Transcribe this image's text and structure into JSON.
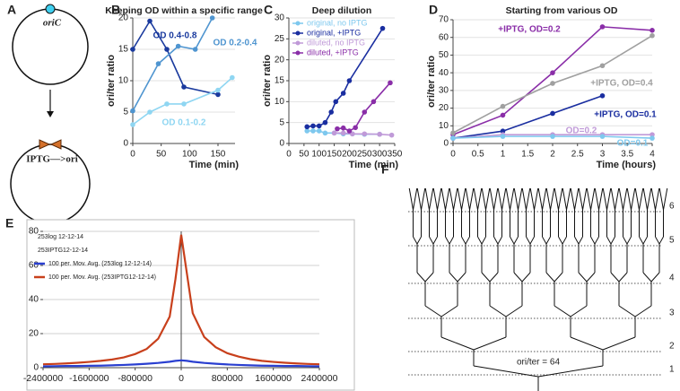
{
  "panel_a": {
    "panel_label": "A",
    "top_label": "oriC",
    "bottom_label": "IPTG—>ori"
  },
  "chart_data": [
    {
      "type": "line",
      "panel_label": "B",
      "title": "Keeping OD within a specific range",
      "x_label": "Time (min)",
      "y_label": "ori/ter ratio",
      "xlim": [
        0,
        180
      ],
      "ylim": [
        0,
        20
      ],
      "xticks": [
        0,
        50,
        100,
        150
      ],
      "yticks": [
        0,
        5,
        10,
        15,
        20
      ],
      "grid": true,
      "markers": true,
      "legend": "inline",
      "series": [
        {
          "name": "OD 0.4-0.8",
          "color": "#1a3a9e",
          "x": [
            0,
            30,
            60,
            90,
            150
          ],
          "values": [
            15,
            19.5,
            15,
            9,
            7.8
          ]
        },
        {
          "name": "OD 0.2-0.4",
          "color": "#4f95d0",
          "x": [
            0,
            45,
            80,
            110,
            140
          ],
          "values": [
            5.2,
            12.7,
            15.5,
            15,
            20
          ]
        },
        {
          "name": "OD 0.1-0.2",
          "color": "#8fd6f2",
          "x": [
            0,
            30,
            60,
            90,
            150,
            175
          ],
          "values": [
            3,
            5,
            6.3,
            6.3,
            8.5,
            10.5
          ]
        }
      ]
    },
    {
      "type": "line",
      "panel_label": "C",
      "title": "Deep dilution",
      "x_label": "Time (min)",
      "y_label": "ori/ter ratio",
      "xlim": [
        0,
        350
      ],
      "ylim": [
        0,
        30
      ],
      "xticks": [
        0,
        50,
        100,
        150,
        200,
        250,
        300,
        350
      ],
      "yticks": [
        0,
        5,
        10,
        15,
        20,
        25,
        30
      ],
      "grid": true,
      "markers": true,
      "legend": "upper left",
      "series": [
        {
          "name": "original, no IPTG",
          "color": "#7ec8ee",
          "x": [
            60,
            80,
            100,
            120,
            150,
            180,
            210,
            250,
            300
          ],
          "values": [
            3,
            3,
            3,
            2.5,
            2.5,
            2.3,
            2.3,
            2.2,
            2.2
          ]
        },
        {
          "name": "original, +IPTG",
          "color": "#1a2ea0",
          "x": [
            60,
            80,
            100,
            120,
            140,
            155,
            180,
            200,
            310
          ],
          "values": [
            4,
            4.2,
            4.2,
            5,
            7.5,
            10,
            12,
            15,
            27.5
          ]
        },
        {
          "name": "diluted, no IPTG",
          "color": "#c09ad8",
          "x": [
            150,
            180,
            210,
            250,
            300,
            340
          ],
          "values": [
            2.5,
            2.5,
            2.3,
            2.3,
            2.2,
            2
          ]
        },
        {
          "name": "diluted, +IPTG",
          "color": "#8a2ea8",
          "x": [
            160,
            180,
            200,
            220,
            250,
            280,
            335
          ],
          "values": [
            3.5,
            3.7,
            3,
            3.8,
            7.5,
            10,
            14.5
          ]
        }
      ]
    },
    {
      "type": "line",
      "panel_label": "D",
      "title": "Starting from various OD",
      "x_label": "Time (hours)",
      "y_label": "ori/ter ratio",
      "xlim": [
        0,
        4
      ],
      "ylim": [
        0,
        70
      ],
      "xticks": [
        0,
        0.5,
        1,
        1.5,
        2,
        2.5,
        3,
        3.5,
        4
      ],
      "yticks": [
        0,
        10,
        20,
        30,
        40,
        50,
        60,
        70
      ],
      "grid": true,
      "markers": true,
      "legend": "inline",
      "series": [
        {
          "name": "+IPTG, OD=0.2",
          "color": "#8a2ea8",
          "x": [
            0,
            1,
            2,
            3,
            4
          ],
          "values": [
            5,
            16,
            40,
            66,
            64
          ]
        },
        {
          "name": "+IPTG, OD=0.4",
          "color": "#a0a0a0",
          "x": [
            0,
            1,
            2,
            3,
            4
          ],
          "values": [
            6,
            21,
            34,
            44,
            61
          ]
        },
        {
          "name": "+IPTG, OD=0.1",
          "color": "#1a2ea0",
          "x": [
            0,
            1,
            2,
            3
          ],
          "values": [
            3,
            7,
            17,
            27
          ]
        },
        {
          "name": "OD=0.2",
          "color": "#c09ad8",
          "x": [
            0,
            1,
            2,
            3,
            4
          ],
          "values": [
            3,
            5,
            5,
            5,
            5
          ]
        },
        {
          "name": "OD=0.1",
          "color": "#7ec8ee",
          "x": [
            0,
            1,
            2,
            3,
            4
          ],
          "values": [
            3,
            4,
            4,
            4,
            3
          ]
        }
      ]
    },
    {
      "type": "line",
      "panel_label": "E",
      "xlim": [
        -2400000,
        2400000
      ],
      "ylim": [
        0,
        80
      ],
      "xticks": [
        -2400000,
        -1600000,
        -800000,
        0,
        800000,
        1600000,
        2400000
      ],
      "yticks": [
        0,
        20,
        40,
        60,
        80
      ],
      "grid": true,
      "markers": false,
      "legend": "upper left",
      "raw_series_names": [
        "253log 12-12-14",
        "253IPTG12-12-14"
      ],
      "x": [
        -2400000,
        -2200000,
        -2000000,
        -1800000,
        -1600000,
        -1400000,
        -1200000,
        -1000000,
        -800000,
        -600000,
        -400000,
        -200000,
        -100000,
        0,
        100000,
        200000,
        400000,
        600000,
        800000,
        1000000,
        1200000,
        1400000,
        1600000,
        1800000,
        2000000,
        2200000,
        2400000
      ],
      "series": [
        {
          "name": "100 per. Mov. Avg. (253log 12-12-14)",
          "color": "#2a3fd0",
          "values": [
            0.8,
            0.9,
            1,
            1,
            1.1,
            1.2,
            1.4,
            1.6,
            1.9,
            2.3,
            2.8,
            3.5,
            4,
            4.3,
            4,
            3.5,
            2.8,
            2.3,
            1.9,
            1.6,
            1.4,
            1.2,
            1.1,
            1,
            1,
            0.9,
            0.8
          ]
        },
        {
          "name": "100 per. Mov. Avg. (253IPTG12-12-14)",
          "color": "#c8401c",
          "values": [
            2,
            2.2,
            2.5,
            2.9,
            3.4,
            4,
            4.8,
            6,
            8,
            11,
            17,
            30,
            52,
            78,
            55,
            32,
            18,
            12,
            8.5,
            6.5,
            5,
            4,
            3.4,
            2.9,
            2.5,
            2.2,
            2
          ]
        }
      ]
    }
  ],
  "diagram_f": {
    "panel_label": "F",
    "level_labels": [
      "6",
      "5",
      "4",
      "3",
      "2",
      "1"
    ],
    "annotation": "ori/ter = 64"
  }
}
